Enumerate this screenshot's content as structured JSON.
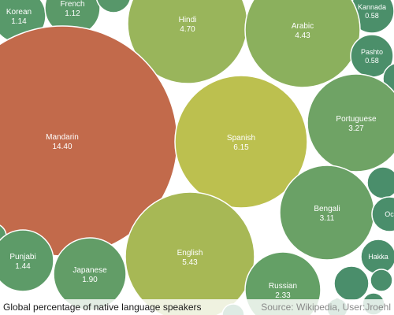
{
  "chart_data": {
    "type": "bubble",
    "title": "Global percentage of native language speakers",
    "source": "Source: Wikipedia, User:Jroehl",
    "unit": "%",
    "bubbles": [
      {
        "label": "Korean",
        "value": 1.14,
        "color": "#58996a"
      },
      {
        "label": "French",
        "value": 1.12,
        "color": "#5a9968"
      },
      {
        "label": "",
        "value": null,
        "color": "#57976a"
      },
      {
        "label": "Kannada",
        "value": 0.58,
        "color": "#4b8f6a"
      },
      {
        "label": "Hindi",
        "value": 4.7,
        "color": "#99b55b"
      },
      {
        "label": "Arabic",
        "value": 4.43,
        "color": "#8bb05d"
      },
      {
        "label": "Pashto",
        "value": 0.58,
        "color": "#4b8f6a"
      },
      {
        "label": "",
        "value": null,
        "color": "#4a8e6b"
      },
      {
        "label": "Mandarin",
        "value": 14.4,
        "color": "#c26a4b"
      },
      {
        "label": "Spanish",
        "value": 6.15,
        "color": "#bcc04f"
      },
      {
        "label": "Portuguese",
        "value": 3.27,
        "color": "#6fa365"
      },
      {
        "label": "",
        "value": null,
        "color": "#4a8e6b"
      },
      {
        "label": "Bengali",
        "value": 3.11,
        "color": "#6aa166"
      },
      {
        "label": "Oc",
        "value": null,
        "color": "#4a8e6b"
      },
      {
        "label": "",
        "value": null,
        "color": "#5a9968"
      },
      {
        "label": "Punjabi",
        "value": 1.44,
        "color": "#5d9b68"
      },
      {
        "label": "Japanese",
        "value": 1.9,
        "color": "#629d67"
      },
      {
        "label": "English",
        "value": 5.43,
        "color": "#a7b855"
      },
      {
        "label": "Hakka",
        "value": null,
        "color": "#4a8e6b"
      },
      {
        "label": "Russian",
        "value": 2.33,
        "color": "#64a066"
      },
      {
        "label": "",
        "value": null,
        "color": "#4a8e6b"
      },
      {
        "label": "",
        "value": null,
        "color": "#4a8e6b"
      },
      {
        "label": "",
        "value": null,
        "color": "#4a8e6b"
      },
      {
        "label": "",
        "value": null,
        "color": "#4a8e6b"
      },
      {
        "label": "",
        "value": null,
        "color": "#4a8e6b"
      }
    ]
  }
}
